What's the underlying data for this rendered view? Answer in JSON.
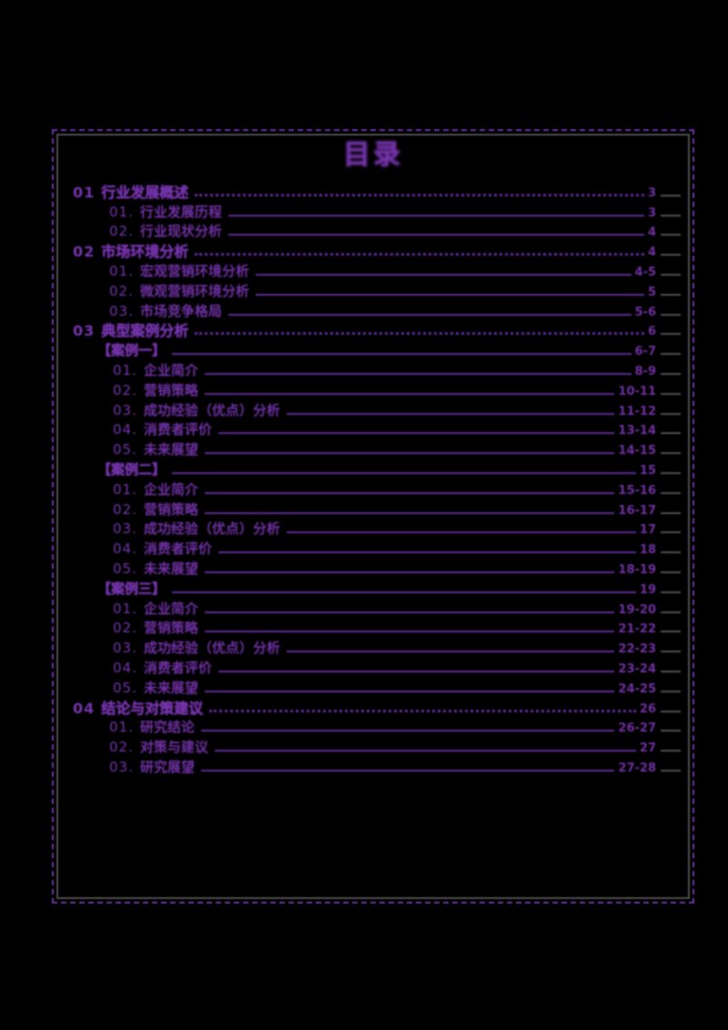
{
  "page": {
    "background": "#000000",
    "ink_color": "#7634AD",
    "leader_color": "#5E2B96",
    "tail_color": "#4F4F4F",
    "frame_solid_color": "#4A4A4A",
    "frame_dashed_color": "#6B2FA3"
  },
  "title": "目录",
  "toc": {
    "rows": [
      {
        "level": "section",
        "prefix": "01",
        "text": "行业发展概述",
        "page": "3"
      },
      {
        "level": "item",
        "prefix": "01.",
        "text": "行业发展历程",
        "page": "3"
      },
      {
        "level": "item",
        "prefix": "02.",
        "text": "行业现状分析",
        "page": "4"
      },
      {
        "level": "section",
        "prefix": "02",
        "text": "市场环境分析",
        "page": "4"
      },
      {
        "level": "item",
        "prefix": "01.",
        "text": "宏观营销环境分析",
        "page": "4-5"
      },
      {
        "level": "item",
        "prefix": "02.",
        "text": "微观营销环境分析",
        "page": "5"
      },
      {
        "level": "item",
        "prefix": "03.",
        "text": "市场竞争格局",
        "page": "5-6"
      },
      {
        "level": "section",
        "prefix": "03",
        "text": "典型案例分析",
        "page": "6"
      },
      {
        "level": "header",
        "prefix": "",
        "text": "【案例一】",
        "page": "6-7"
      },
      {
        "level": "subitem",
        "prefix": "01.",
        "text": "企业简介",
        "page": "8-9"
      },
      {
        "level": "subitem",
        "prefix": "02.",
        "text": "营销策略",
        "page": "10-11"
      },
      {
        "level": "subitem",
        "prefix": "03.",
        "text": "成功经验（优点）分析",
        "page": "11-12"
      },
      {
        "level": "subitem",
        "prefix": "04.",
        "text": "消费者评价",
        "page": "13-14"
      },
      {
        "level": "subitem",
        "prefix": "05.",
        "text": "未来展望",
        "page": "14-15"
      },
      {
        "level": "header",
        "prefix": "",
        "text": "【案例二】",
        "page": "15"
      },
      {
        "level": "subitem",
        "prefix": "01.",
        "text": "企业简介",
        "page": "15-16"
      },
      {
        "level": "subitem",
        "prefix": "02.",
        "text": "营销策略",
        "page": "16-17"
      },
      {
        "level": "subitem",
        "prefix": "03.",
        "text": "成功经验（优点）分析",
        "page": "17"
      },
      {
        "level": "subitem",
        "prefix": "04.",
        "text": "消费者评价",
        "page": "18"
      },
      {
        "level": "subitem",
        "prefix": "05.",
        "text": "未来展望",
        "page": "18-19"
      },
      {
        "level": "header",
        "prefix": "",
        "text": "【案例三】",
        "page": "19"
      },
      {
        "level": "subitem",
        "prefix": "01.",
        "text": "企业简介",
        "page": "19-20"
      },
      {
        "level": "subitem",
        "prefix": "02.",
        "text": "营销策略",
        "page": "21-22"
      },
      {
        "level": "subitem",
        "prefix": "03.",
        "text": "成功经验（优点）分析",
        "page": "22-23"
      },
      {
        "level": "subitem",
        "prefix": "04.",
        "text": "消费者评价",
        "page": "23-24"
      },
      {
        "level": "subitem",
        "prefix": "05.",
        "text": "未来展望",
        "page": "24-25"
      },
      {
        "level": "section",
        "prefix": "04",
        "text": "结论与对策建议",
        "page": "26"
      },
      {
        "level": "item",
        "prefix": "01.",
        "text": "研究结论",
        "page": "26-27"
      },
      {
        "level": "item",
        "prefix": "02.",
        "text": "对策与建议",
        "page": "27"
      },
      {
        "level": "item",
        "prefix": "03.",
        "text": "研究展望",
        "page": "27-28"
      }
    ]
  }
}
